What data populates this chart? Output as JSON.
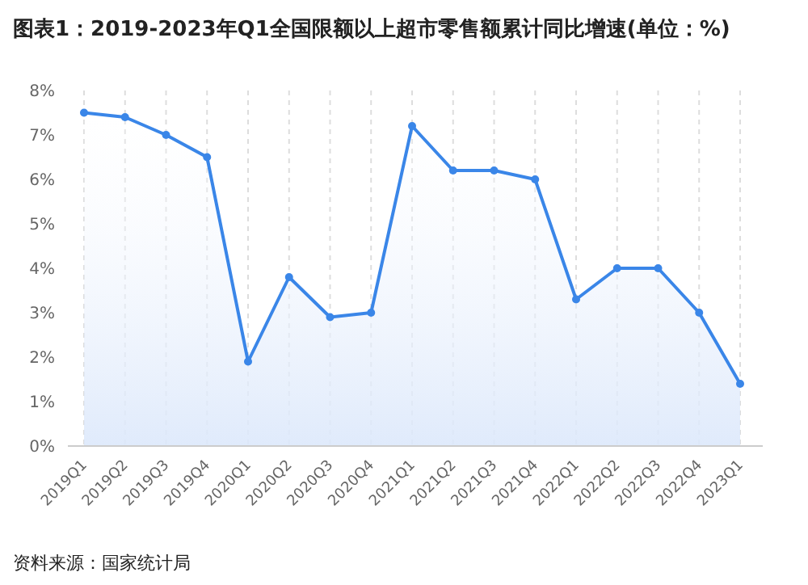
{
  "chart_data": {
    "type": "area",
    "title": "图表1：2019-2023年Q1全国限额以上超市零售额累计同比增速(单位：%)",
    "categories": [
      "2019Q1",
      "2019Q2",
      "2019Q3",
      "2019Q4",
      "2020Q1",
      "2020Q2",
      "2020Q3",
      "2020Q4",
      "2021Q1",
      "2021Q2",
      "2021Q3",
      "2021Q4",
      "2022Q1",
      "2022Q2",
      "2022Q3",
      "2022Q4",
      "2023Q1"
    ],
    "series": [
      {
        "color": "#3a86e8",
        "values": [
          7.5,
          7.4,
          7.0,
          6.5,
          1.9,
          3.8,
          2.9,
          3.0,
          7.2,
          6.2,
          6.2,
          6.0,
          3.3,
          4.0,
          4.0,
          3.0,
          1.4
        ]
      }
    ],
    "ylim": [
      0,
      8
    ],
    "yticks": [
      {
        "value": 0,
        "label": "0%"
      },
      {
        "value": 1,
        "label": "1%"
      },
      {
        "value": 2,
        "label": "2%"
      },
      {
        "value": 3,
        "label": "3%"
      },
      {
        "value": 4,
        "label": "4%"
      },
      {
        "value": 5,
        "label": "5%"
      },
      {
        "value": 6,
        "label": "6%"
      },
      {
        "value": 7,
        "label": "7%"
      },
      {
        "value": 8,
        "label": "8%"
      }
    ],
    "grid": "x",
    "marker": "circle",
    "line_style": "solid",
    "annotations": [
      "资料来源：国家统计局"
    ]
  }
}
